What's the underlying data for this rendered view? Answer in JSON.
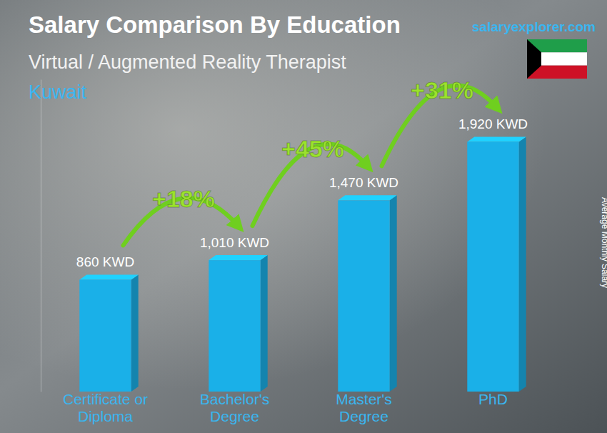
{
  "chart_data": {
    "type": "bar",
    "title": "Salary Comparison By Education",
    "subtitle": "Virtual / Augmented Reality Therapist",
    "region": "Kuwait",
    "source": "salaryexplorer.com",
    "y_label": "Average Monthly Salary",
    "categories": [
      "Certificate or Diploma",
      "Bachelor's Degree",
      "Master's Degree",
      "PhD"
    ],
    "values": [
      860,
      1010,
      1470,
      1920
    ],
    "value_labels": [
      "860 KWD",
      "1,010 KWD",
      "1,470 KWD",
      "1,920 KWD"
    ],
    "data_labels": true,
    "annotations": [
      "+18%",
      "+45%",
      "+31%"
    ],
    "color": "#1ab0e8",
    "ylim": [
      0,
      2400
    ],
    "tick_labels": false,
    "grid": false
  }
}
